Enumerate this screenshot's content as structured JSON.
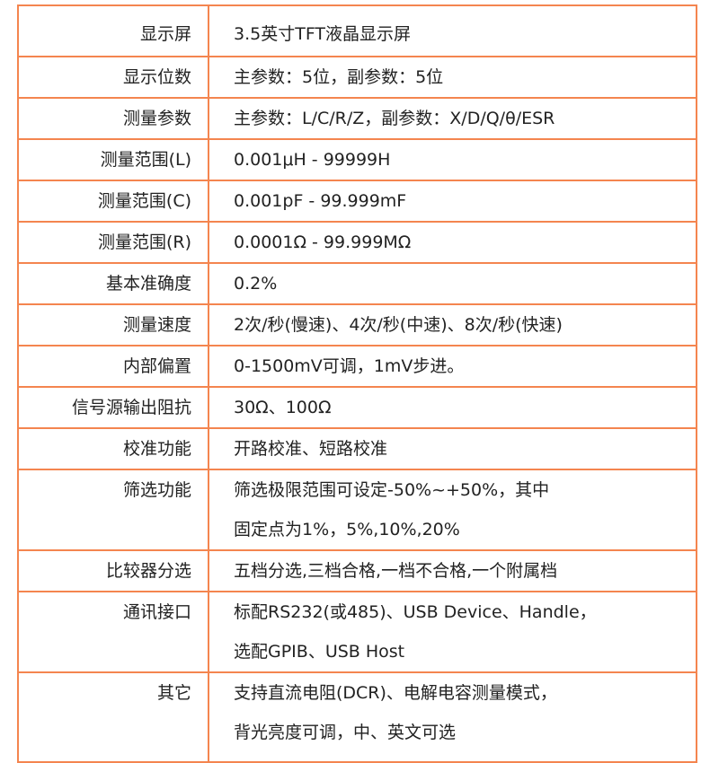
{
  "spec_table": {
    "border_color": "#f4854f",
    "rows": [
      {
        "label": "显示屏",
        "lines": [
          "3.5英寸TFT液晶显示屏"
        ]
      },
      {
        "label": "显示位数",
        "lines": [
          "主参数：5位，副参数：5位"
        ]
      },
      {
        "label": "测量参数",
        "lines": [
          "主参数：L/C/R/Z，副参数：X/D/Q/θ/ESR"
        ]
      },
      {
        "label": "测量范围(L)",
        "lines": [
          "0.001μH - 99999H"
        ]
      },
      {
        "label": "测量范围(C)",
        "lines": [
          "0.001pF - 99.999mF"
        ]
      },
      {
        "label": "测量范围(R)",
        "lines": [
          "0.0001Ω - 99.999MΩ"
        ]
      },
      {
        "label": "基本准确度",
        "lines": [
          "0.2%"
        ]
      },
      {
        "label": "测量速度",
        "lines": [
          "2次/秒(慢速)、4次/秒(中速)、8次/秒(快速)"
        ]
      },
      {
        "label": "内部偏置",
        "lines": [
          "0-1500mV可调，1mV步进。"
        ]
      },
      {
        "label": "信号源输出阻抗",
        "lines": [
          "30Ω、100Ω"
        ]
      },
      {
        "label": "校准功能",
        "lines": [
          "开路校准、短路校准"
        ]
      },
      {
        "label": "筛选功能",
        "lines": [
          "筛选极限范围可设定-50%~+50%，其中",
          "固定点为1%，5%,10%,20%"
        ]
      },
      {
        "label": "比较器分选",
        "lines": [
          "五档分选,三档合格,一档不合格,一个附属档"
        ]
      },
      {
        "label": "通讯接口",
        "lines": [
          "标配RS232(或485)、USB Device、Handle，",
          "选配GPIB、USB Host"
        ]
      },
      {
        "label": "其它",
        "lines": [
          "支持直流电阻(DCR)、电解电容测量模式，",
          "背光亮度可调，中、英文可选"
        ]
      }
    ]
  }
}
